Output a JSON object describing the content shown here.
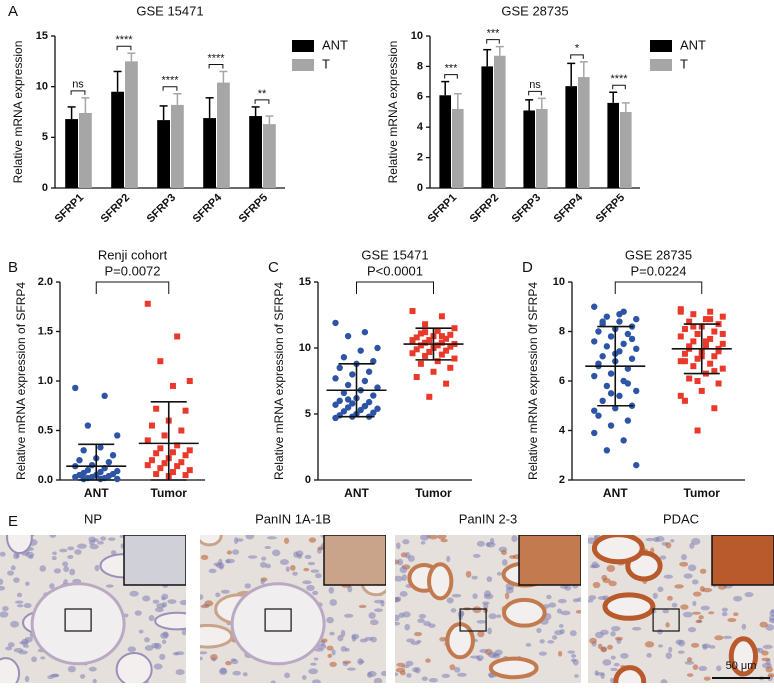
{
  "panel_letters": [
    "A",
    "B",
    "C",
    "D",
    "E"
  ],
  "chart_data": [
    {
      "type": "bar",
      "title": "GSE 15471",
      "y_label": "Relative mRNA expression",
      "categories": [
        "SFRP1",
        "SFRP2",
        "SFRP3",
        "SFRP4",
        "SFRP5"
      ],
      "series": [
        {
          "name": "ANT",
          "color": "#000000",
          "values": [
            6.8,
            9.5,
            6.7,
            6.9,
            7.1
          ],
          "errors": [
            1.2,
            2.0,
            1.4,
            2.0,
            0.9
          ]
        },
        {
          "name": "T",
          "color": "#a6a6a6",
          "values": [
            7.4,
            12.5,
            8.2,
            10.4,
            6.3
          ],
          "errors": [
            1.5,
            0.8,
            1.1,
            1.1,
            0.8
          ]
        }
      ],
      "significance": [
        "ns",
        "****",
        "****",
        "****",
        "**"
      ],
      "ylim": [
        0,
        15
      ],
      "yticks": [
        0,
        5,
        10,
        15
      ],
      "legend": "right"
    },
    {
      "type": "bar",
      "title": "GSE 28735",
      "y_label": "Relative mRNA expression",
      "categories": [
        "SFRP1",
        "SFRP2",
        "SFRP3",
        "SFRP4",
        "SFRP5"
      ],
      "series": [
        {
          "name": "ANT",
          "color": "#000000",
          "values": [
            6.1,
            8.0,
            5.1,
            6.7,
            5.6
          ],
          "errors": [
            0.9,
            1.1,
            0.7,
            1.5,
            0.7
          ]
        },
        {
          "name": "T",
          "color": "#a6a6a6",
          "values": [
            5.2,
            8.7,
            5.2,
            7.3,
            5.0
          ],
          "errors": [
            1.0,
            0.6,
            0.7,
            1.0,
            0.6
          ]
        }
      ],
      "significance": [
        "***",
        "***",
        "ns",
        "*",
        "****"
      ],
      "ylim": [
        0,
        10
      ],
      "yticks": [
        0,
        2,
        4,
        6,
        8,
        10
      ],
      "legend": "right"
    },
    {
      "type": "dot",
      "title": "Renji cohort",
      "annotation": "P=0.0072",
      "y_label": "Relative mRNA expression of SFRP4",
      "series": [
        {
          "name": "ANT",
          "color": "#2e55a5",
          "marker": "circle",
          "mean": 0.14,
          "sd": 0.22,
          "values": [
            0.93,
            0.85,
            0.55,
            0.45,
            0.33,
            0.3,
            0.25,
            0.22,
            0.2,
            0.18,
            0.15,
            0.14,
            0.12,
            0.1,
            0.09,
            0.08,
            0.07,
            0.06,
            0.05,
            0.05,
            0.04,
            0.03,
            0.03,
            0.02,
            0.02,
            0.01,
            0.01,
            0.01
          ]
        },
        {
          "name": "Tumor",
          "color": "#e8392a",
          "marker": "square",
          "mean": 0.37,
          "sd": 0.42,
          "values": [
            1.78,
            1.45,
            1.2,
            1.0,
            0.95,
            0.72,
            0.7,
            0.6,
            0.55,
            0.5,
            0.45,
            0.4,
            0.35,
            0.32,
            0.3,
            0.28,
            0.27,
            0.25,
            0.22,
            0.2,
            0.18,
            0.17,
            0.15,
            0.14,
            0.12,
            0.1,
            0.08,
            0.06,
            0.05,
            0.04
          ]
        }
      ],
      "ylim": [
        0,
        2.0
      ],
      "yticks": [
        {
          "value": 0,
          "label": "0.0"
        },
        0.5,
        {
          "value": 1,
          "label": "1.0"
        },
        1.5,
        {
          "value": 2,
          "label": "2.0"
        }
      ]
    },
    {
      "type": "dot",
      "title": "GSE 15471",
      "annotation": "P<0.0001",
      "y_label": "Relative mRNA expression of SFRP4",
      "series": [
        {
          "name": "ANT",
          "color": "#2e55a5",
          "marker": "circle",
          "mean": 6.8,
          "sd": 2.0,
          "values": [
            11.9,
            11.2,
            10.9,
            10.0,
            9.8,
            9.3,
            9.0,
            8.8,
            8.5,
            8.2,
            8.0,
            7.7,
            7.5,
            7.2,
            7.0,
            6.8,
            6.6,
            6.4,
            6.2,
            6.0,
            5.9,
            5.8,
            5.7,
            5.6,
            5.5,
            5.4,
            5.3,
            5.2,
            5.1,
            5.0,
            4.9,
            4.8,
            4.8,
            4.7,
            5.6,
            6.1
          ]
        },
        {
          "name": "Tumor",
          "color": "#e8392a",
          "marker": "square",
          "mean": 10.3,
          "sd": 1.2,
          "values": [
            12.8,
            12.4,
            11.8,
            11.5,
            11.3,
            11.1,
            11.0,
            10.9,
            10.8,
            10.7,
            10.6,
            10.5,
            10.4,
            10.4,
            10.3,
            10.2,
            10.2,
            10.1,
            10.0,
            9.9,
            9.8,
            9.7,
            9.6,
            9.5,
            9.4,
            9.2,
            9.0,
            8.8,
            8.5,
            8.2,
            7.8,
            7.3,
            6.3,
            10.6,
            10.9,
            11.2
          ]
        }
      ],
      "ylim": [
        0,
        15
      ],
      "yticks": [
        0,
        5,
        10,
        15
      ]
    },
    {
      "type": "dot",
      "title": "GSE 28735",
      "annotation": "P=0.0224",
      "y_label": "Relative mRNA expression 0f SFRP4",
      "series": [
        {
          "name": "ANT",
          "color": "#2e55a5",
          "marker": "circle",
          "mean": 6.6,
          "sd": 1.6,
          "values": [
            9.0,
            8.8,
            8.6,
            8.5,
            8.4,
            8.3,
            8.2,
            8.1,
            8.0,
            7.9,
            7.8,
            7.6,
            7.5,
            7.4,
            7.3,
            7.2,
            7.0,
            6.9,
            6.8,
            6.7,
            6.5,
            6.3,
            6.2,
            6.0,
            5.8,
            5.6,
            5.4,
            5.2,
            5.0,
            4.9,
            4.6,
            4.4,
            4.2,
            3.9,
            3.6,
            3.2,
            2.6,
            8.7,
            8.4,
            7.7,
            7.1,
            6.6,
            5.9,
            5.5,
            4.8
          ]
        },
        {
          "name": "Tumor",
          "color": "#e8392a",
          "marker": "square",
          "mean": 7.3,
          "sd": 1.0,
          "values": [
            8.9,
            8.8,
            8.7,
            8.6,
            8.5,
            8.4,
            8.3,
            8.2,
            8.1,
            8.0,
            7.9,
            7.8,
            7.7,
            7.6,
            7.5,
            7.4,
            7.3,
            7.3,
            7.2,
            7.1,
            7.0,
            6.9,
            6.8,
            6.7,
            6.6,
            6.5,
            6.3,
            6.1,
            5.9,
            5.6,
            5.2,
            4.9,
            4.0,
            8.8,
            8.5,
            8.2,
            7.9,
            7.6,
            7.4,
            7.2,
            7.0,
            6.8,
            6.4,
            6.0,
            5.4
          ]
        }
      ],
      "ylim": [
        2,
        10
      ],
      "yticks": [
        2,
        4,
        6,
        8,
        10
      ]
    }
  ],
  "images": {
    "labels": [
      "NP",
      "PanIN 1A-1B",
      "PanIN 2-3",
      "PDAC"
    ],
    "scale_bar": "50 μm"
  }
}
